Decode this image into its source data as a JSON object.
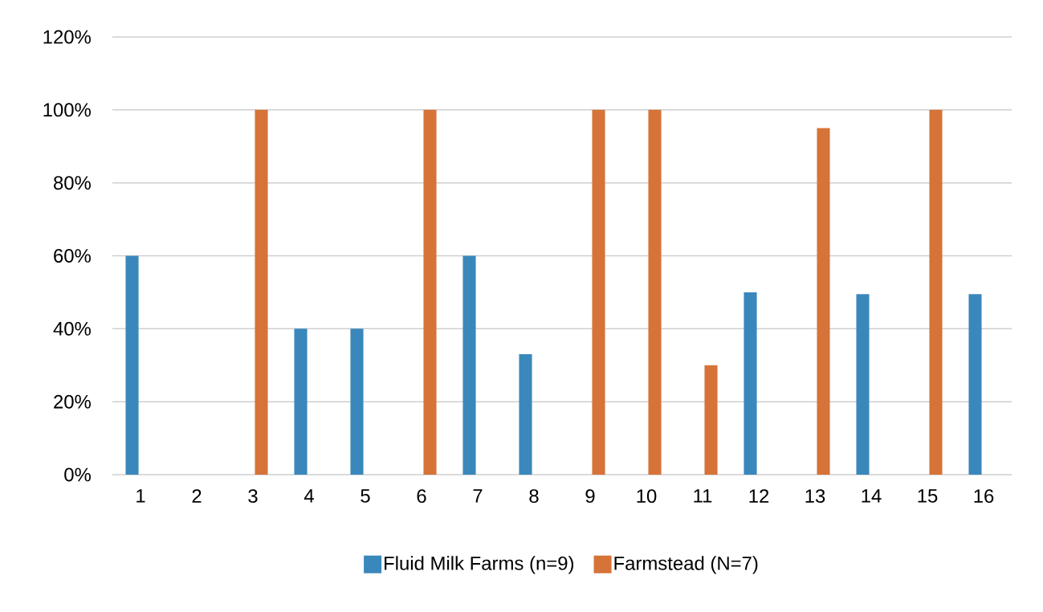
{
  "chart_data": {
    "type": "bar",
    "categories": [
      "1",
      "2",
      "3",
      "4",
      "5",
      "6",
      "7",
      "8",
      "9",
      "10",
      "11",
      "12",
      "13",
      "14",
      "15",
      "16"
    ],
    "series": [
      {
        "name": "Fluid Milk Farms (n=9)",
        "color": "#3a87bc",
        "values": [
          60,
          0,
          null,
          40,
          40,
          null,
          60,
          33,
          null,
          null,
          null,
          50,
          null,
          49.5,
          null,
          49.5
        ]
      },
      {
        "name": "Farmstead (N=7)",
        "color": "#d67338",
        "values": [
          null,
          null,
          100,
          null,
          null,
          100,
          null,
          null,
          100,
          100,
          30,
          null,
          95,
          null,
          100,
          null
        ]
      }
    ],
    "ylim": [
      0,
      120
    ],
    "yticks": [
      {
        "value": 0,
        "label": "0%"
      },
      {
        "value": 20,
        "label": "20%"
      },
      {
        "value": 40,
        "label": "40%"
      },
      {
        "value": 60,
        "label": "60%"
      },
      {
        "value": 80,
        "label": "80%"
      },
      {
        "value": 100,
        "label": "100%"
      },
      {
        "value": 120,
        "label": "120%"
      }
    ],
    "grid": "y",
    "legend": "bottom"
  }
}
